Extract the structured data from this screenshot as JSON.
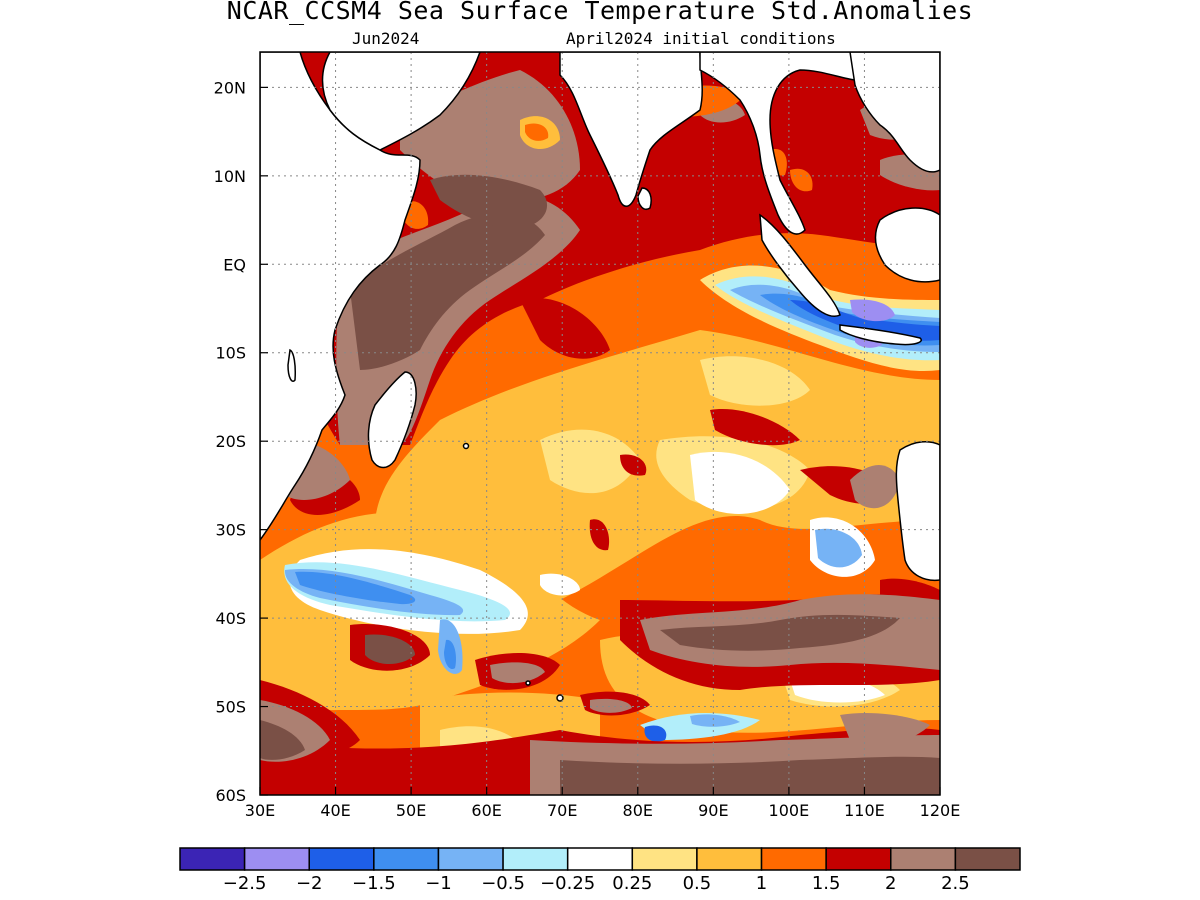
{
  "title": "NCAR_CCSM4 Sea Surface Temperature Std.Anomalies",
  "subtitle_left": "Jun2024",
  "subtitle_right": "April2024 initial conditions",
  "map": {
    "lon_range": [
      30,
      120
    ],
    "lat_range": [
      -60,
      24
    ],
    "x_ticks": [
      "30E",
      "40E",
      "50E",
      "60E",
      "70E",
      "80E",
      "90E",
      "100E",
      "110E",
      "120E"
    ],
    "y_ticks": [
      "20N",
      "10N",
      "EQ",
      "10S",
      "20S",
      "30S",
      "40S",
      "50S",
      "60S"
    ],
    "grid": "dotted"
  },
  "colorbar": {
    "colors": [
      "#3b24b5",
      "#9d8ef2",
      "#1e5fe8",
      "#3f8ff0",
      "#76b3f5",
      "#b2eefa",
      "#ffffff",
      "#ffe383",
      "#ffbe3c",
      "#ff6a00",
      "#c40000",
      "#ac8072",
      "#7a5046"
    ],
    "labels": [
      "−2.5",
      "−2",
      "−1.5",
      "−1",
      "−0.5",
      "−0.25",
      "0.25",
      "0.5",
      "1",
      "1.5",
      "2",
      "2.5"
    ]
  },
  "legend_swatches": {
    "land": "#ffffff",
    "coast": "#000000"
  }
}
